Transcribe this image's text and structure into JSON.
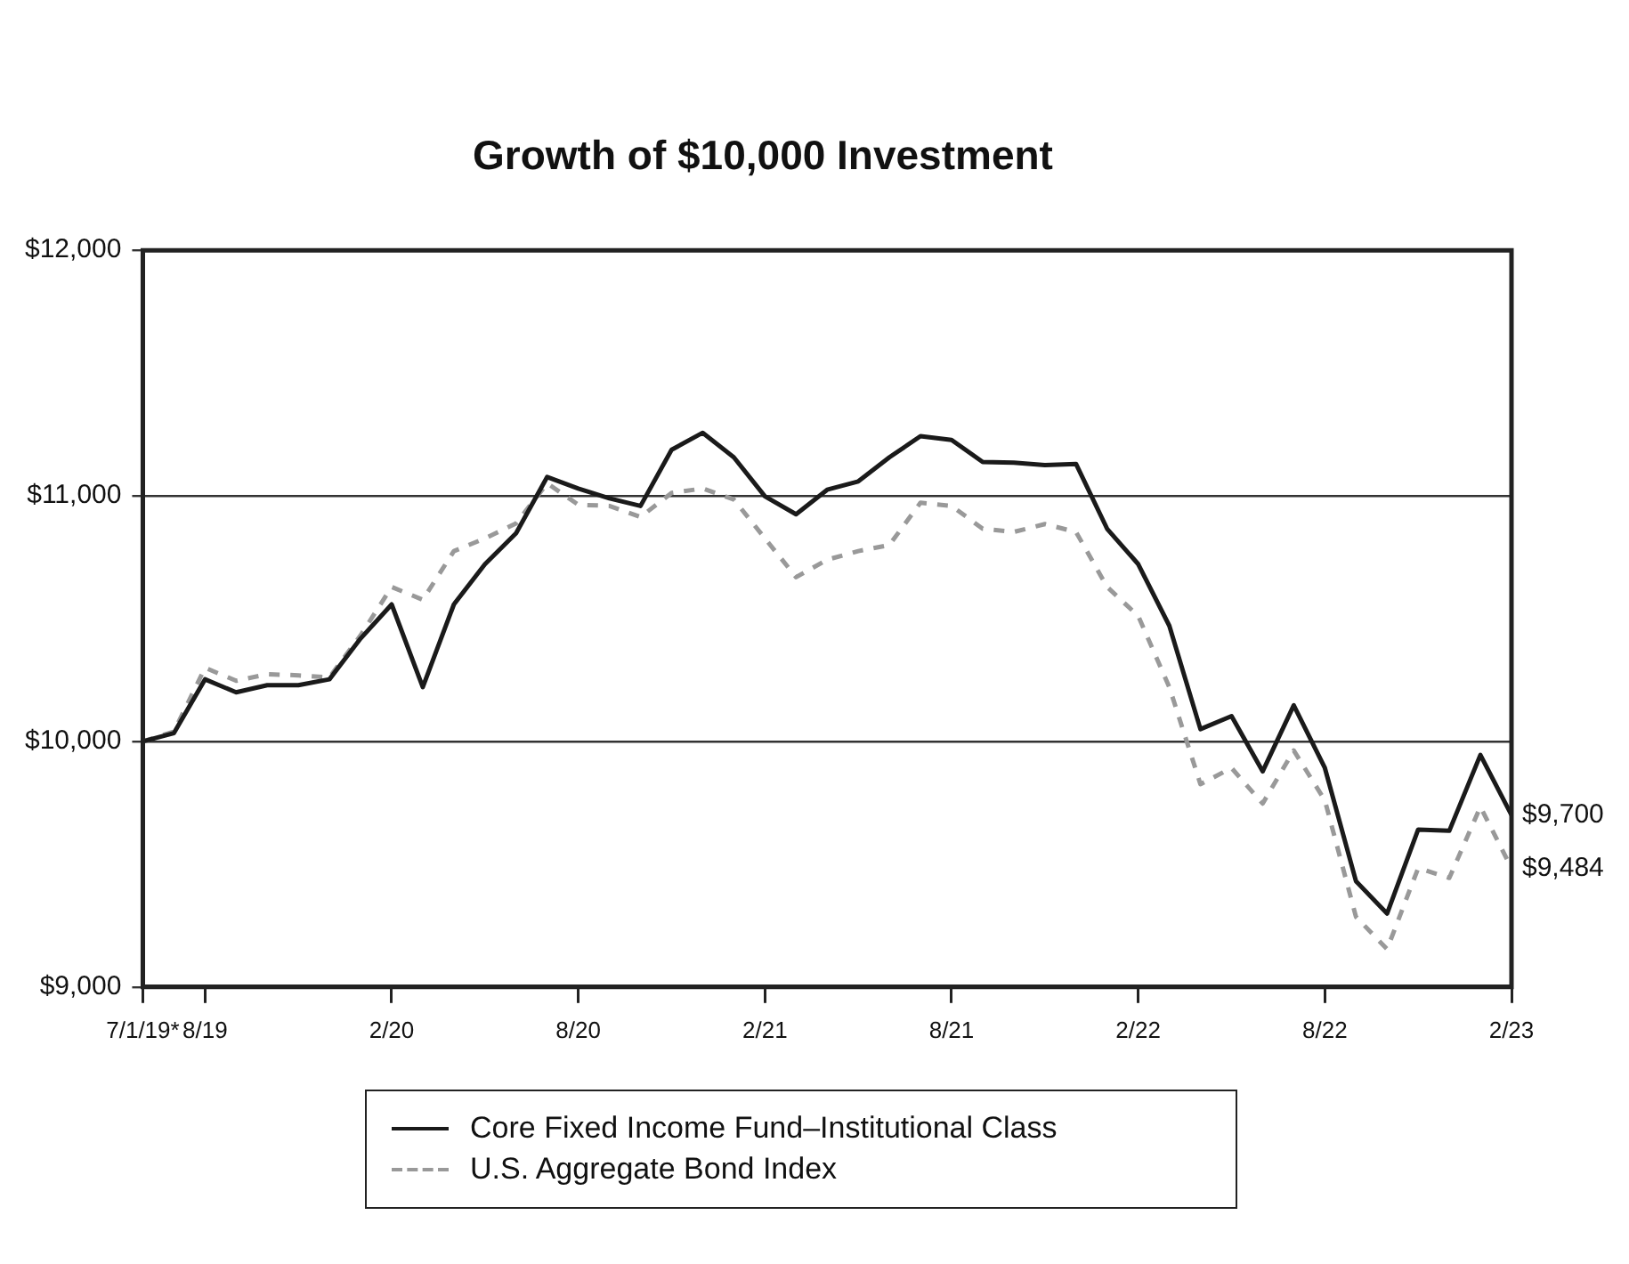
{
  "chart_data": {
    "type": "line",
    "title": "Growth of $10,000 Investment",
    "categories": [
      "7/1/19*",
      null,
      "8/19",
      null,
      null,
      null,
      null,
      null,
      "2/20",
      null,
      null,
      null,
      null,
      null,
      "8/20",
      null,
      null,
      null,
      null,
      null,
      "2/21",
      null,
      null,
      null,
      null,
      null,
      "8/21",
      null,
      null,
      null,
      null,
      null,
      "2/22",
      null,
      null,
      null,
      null,
      null,
      "8/22",
      null,
      null,
      null,
      null,
      null,
      "2/23"
    ],
    "series": [
      {
        "name": "Core Fixed Income Fund–Institutional Class",
        "color": "#1a1a1a",
        "line_style": "solid",
        "values": [
          10000,
          10034,
          10253,
          10200,
          10229,
          10229,
          10253,
          10419,
          10558,
          10221,
          10558,
          10722,
          10848,
          11077,
          11030,
          10990,
          10959,
          11188,
          11257,
          11157,
          10998,
          10925,
          11025,
          11059,
          11157,
          11243,
          11228,
          11138,
          11135,
          11125,
          11130,
          10866,
          10722,
          10471,
          10050,
          10103,
          9878,
          10147,
          9892,
          9431,
          9299,
          9641,
          9636,
          9945,
          9700
        ]
      },
      {
        "name": "U.S. Aggregate Bond Index",
        "color": "#999999",
        "line_style": "dashed",
        "values": [
          10000,
          10040,
          10300,
          10247,
          10274,
          10269,
          10261,
          10432,
          10629,
          10577,
          10775,
          10827,
          10888,
          11051,
          10964,
          10959,
          10914,
          11012,
          11030,
          10985,
          10827,
          10669,
          10740,
          10775,
          10800,
          10972,
          10959,
          10866,
          10853,
          10885,
          10853,
          10629,
          10511,
          10221,
          9826,
          9892,
          9747,
          9963,
          9760,
          9286,
          9154,
          9484,
          9444,
          9734,
          9484
        ]
      }
    ],
    "ylim": [
      9000,
      12000
    ],
    "yticks": [
      {
        "value": 9000,
        "label": "$9,000"
      },
      {
        "value": 10000,
        "label": "$10,000"
      },
      {
        "value": 11000,
        "label": "$11,000"
      },
      {
        "value": 12000,
        "label": "$12,000"
      }
    ],
    "grid": "y",
    "legend": "bottom",
    "marker": "none",
    "annotations": [
      {
        "text": "$9,700",
        "x": "2/23",
        "y": 9700
      },
      {
        "text": "$9,484",
        "x": "2/23",
        "y": 9484
      }
    ]
  }
}
